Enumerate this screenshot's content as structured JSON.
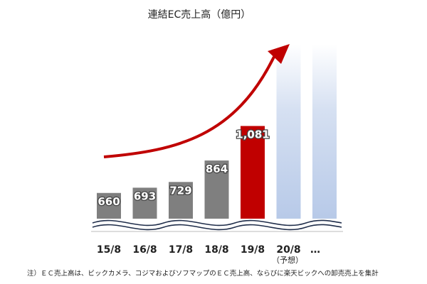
{
  "chart_data": {
    "type": "bar",
    "title": "連結EC売上高（億円）",
    "categories": [
      "15/8",
      "16/8",
      "17/8",
      "18/8",
      "19/8",
      "20/8"
    ],
    "values": [
      660,
      693,
      729,
      864,
      1081,
      null
    ],
    "value_labels": [
      "660",
      "693",
      "729",
      "864",
      "1,081",
      ""
    ],
    "forecast_sublabel": "（予想）",
    "continuation": "…",
    "xlabel": "",
    "ylabel": "",
    "axis_break": true,
    "grid": false,
    "legend": "none",
    "colors": {
      "actual": "#7f7f7f",
      "highlight": "#c00000",
      "projection": "#b4c7e7",
      "arrow": "#c00000"
    }
  },
  "footnote": "注）ＥＣ売上高は、ビックカメラ、コジマおよびソフマップのＥＣ売上高、ならびに楽天ビックへの卸売売上を集計"
}
